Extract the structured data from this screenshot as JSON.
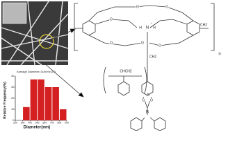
{
  "histogram": {
    "type": "histogram",
    "title": "Average Diameter=310nm±(17)",
    "x_label": "Diameter(nm)",
    "y_label": "Relative Frequency(%)",
    "bins": [
      300,
      400,
      500,
      600,
      700,
      800,
      900
    ],
    "values": [
      12,
      37,
      37,
      30,
      30,
      10
    ],
    "color": "#d42020",
    "xlim": [
      200,
      900
    ],
    "xticks": [
      200,
      300,
      400,
      500,
      600,
      700,
      800,
      900
    ],
    "ylim": [
      0,
      40
    ],
    "yticks": [
      0,
      10,
      20,
      30,
      40
    ]
  },
  "chem_labels": [
    "O",
    "O",
    "O",
    "O",
    "O",
    "O",
    "N",
    "H",
    "H",
    "+",
    "CH2",
    "CH2",
    "n",
    "CHCH2",
    "n",
    "O",
    "O",
    "B"
  ]
}
